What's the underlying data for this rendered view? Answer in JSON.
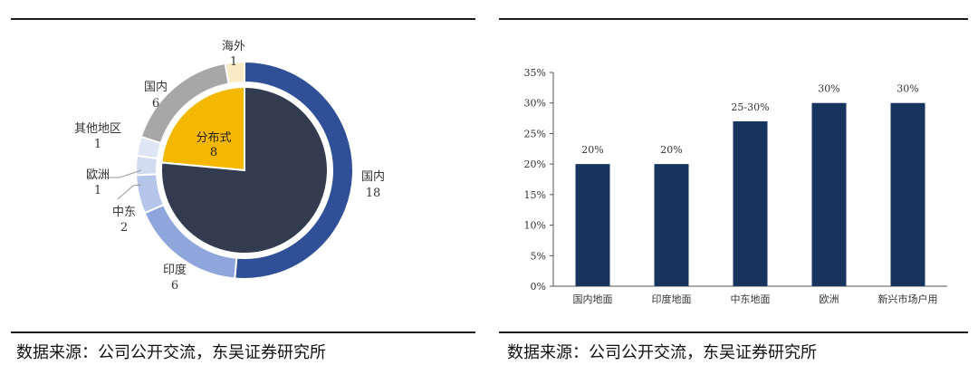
{
  "source_left": "数据来源：公司公开交流，东吴证券研究所",
  "source_right": "数据来源：公司公开交流，东吴证券研究所",
  "chart_data": [
    {
      "type": "pie",
      "inner": [
        {
          "name": "分布式",
          "value": 8,
          "color": "#F5B800"
        },
        {
          "name": "",
          "value": 26,
          "color": "#323C4E"
        }
      ],
      "outer": [
        {
          "name": "国内",
          "value": 18,
          "color": "#2F4F96"
        },
        {
          "name": "印度",
          "value": 6,
          "color": "#8EA6DB"
        },
        {
          "name": "中东",
          "value": 2,
          "color": "#B5C6EA"
        },
        {
          "name": "欧洲",
          "value": 1,
          "color": "#D2DCF1"
        },
        {
          "name": "其他地区",
          "value": 1,
          "color": "#DEE5F4"
        },
        {
          "name": "国内",
          "value": 6,
          "color": "#A7A7A7"
        },
        {
          "name": "海外",
          "value": 1,
          "color": "#FBECC8"
        }
      ]
    },
    {
      "type": "bar",
      "categories": [
        "国内地面",
        "印度地面",
        "中东地面",
        "欧洲",
        "新兴市场户用"
      ],
      "values": [
        20,
        20,
        27,
        30,
        30
      ],
      "data_labels": [
        "20%",
        "20%",
        "25-30%",
        "30%",
        "30%"
      ],
      "ylim": [
        0,
        35
      ],
      "yticks": [
        "0%",
        "5%",
        "10%",
        "15%",
        "20%",
        "25%",
        "30%",
        "35%"
      ],
      "bar_color": "#17345E"
    }
  ]
}
